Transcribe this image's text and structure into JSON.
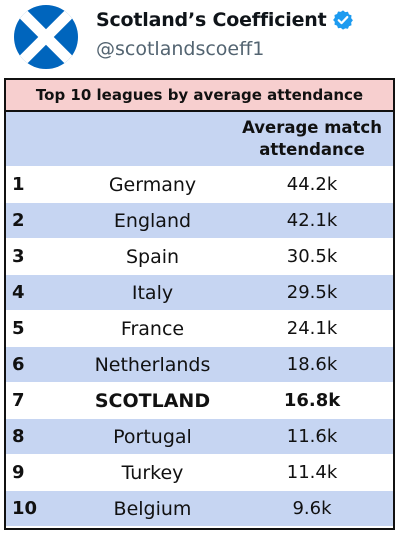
{
  "header": {
    "display_name": "Scotland’s Coefficient",
    "handle": "@scotlandscoeff1",
    "avatar_icon": "scotland-saltire-flag-icon",
    "verified_icon": "verified-badge-icon",
    "colors": {
      "flag_blue": "#0065bd",
      "flag_white": "#ffffff",
      "verified_blue": "#1d9bf0",
      "handle_grey": "#536471"
    }
  },
  "table": {
    "title": "Top 10 leagues by average attendance",
    "headers": {
      "rank": "",
      "league": "",
      "attendance_line1": "Average match",
      "attendance_line2": "attendance"
    },
    "rows": [
      {
        "rank": "1",
        "league": "Germany",
        "attendance": "44.2k",
        "highlight": false
      },
      {
        "rank": "2",
        "league": "England",
        "attendance": "42.1k",
        "highlight": false
      },
      {
        "rank": "3",
        "league": "Spain",
        "attendance": "30.5k",
        "highlight": false
      },
      {
        "rank": "4",
        "league": "Italy",
        "attendance": "29.5k",
        "highlight": false
      },
      {
        "rank": "5",
        "league": "France",
        "attendance": "24.1k",
        "highlight": false
      },
      {
        "rank": "6",
        "league": "Netherlands",
        "attendance": "18.6k",
        "highlight": false
      },
      {
        "rank": "7",
        "league": "SCOTLAND",
        "attendance": "16.8k",
        "highlight": true
      },
      {
        "rank": "8",
        "league": "Portugal",
        "attendance": "11.6k",
        "highlight": false
      },
      {
        "rank": "9",
        "league": "Turkey",
        "attendance": "11.4k",
        "highlight": false
      },
      {
        "rank": "10",
        "league": "Belgium",
        "attendance": "9.6k",
        "highlight": false
      }
    ],
    "colors": {
      "title_bg": "#f7cfcf",
      "stripe_bg": "#c6d5f2",
      "plain_bg": "#ffffff",
      "border": "#111111"
    }
  }
}
